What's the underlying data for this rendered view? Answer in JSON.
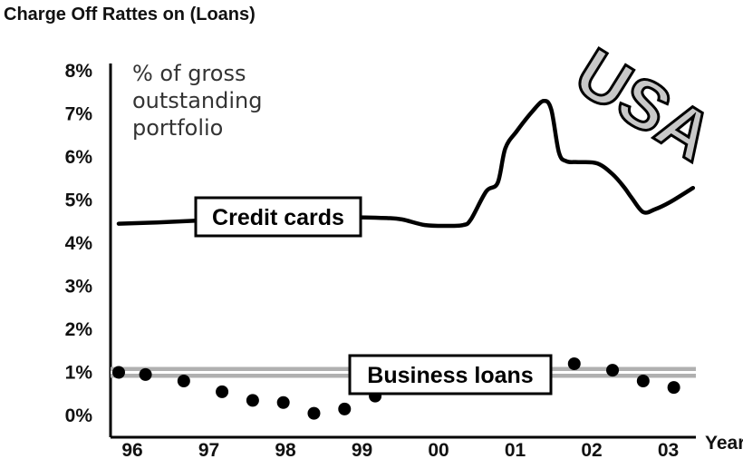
{
  "chart_data": {
    "type": "line",
    "title": "Charge Off Rattes on (Loans)",
    "xlabel": "Year",
    "ylabel": "",
    "annotation": "% of gross outstanding portfolio",
    "annotation_lines": [
      "% of gross",
      "outstanding",
      "portfolio"
    ],
    "region": "USA",
    "ylim": [
      0,
      8
    ],
    "yticks": [
      "0%",
      "1%",
      "2%",
      "3%",
      "4%",
      "5%",
      "6%",
      "7%",
      "8%"
    ],
    "xlim": [
      1996,
      2003.55
    ],
    "xticks": [
      {
        "label": "96",
        "x": 1996
      },
      {
        "label": "97",
        "x": 1997
      },
      {
        "label": "98",
        "x": 1998
      },
      {
        "label": "99",
        "x": 1999
      },
      {
        "label": "00",
        "x": 2000
      },
      {
        "label": "01",
        "x": 2001
      },
      {
        "label": "02",
        "x": 2002
      },
      {
        "label": "03",
        "x": 2003
      }
    ],
    "series": [
      {
        "name": "Credit cards",
        "style": "line",
        "x": [
          1996.0,
          1996.5,
          1997.0,
          1997.5,
          1998.0,
          1998.5,
          1999.0,
          1999.5,
          1999.7,
          2000.0,
          2000.3,
          2000.5,
          2000.6,
          2000.8,
          2000.95,
          2001.05,
          2001.2,
          2001.4,
          2001.55,
          2001.65,
          2001.75,
          2001.85,
          2002.0,
          2002.25,
          2002.45,
          2002.6,
          2002.7,
          2002.85,
          2003.0,
          2003.2,
          2003.5
        ],
        "values": [
          4.45,
          4.48,
          4.52,
          4.55,
          4.57,
          4.59,
          4.6,
          4.58,
          4.55,
          4.42,
          4.4,
          4.42,
          4.55,
          5.2,
          5.4,
          6.2,
          6.6,
          7.05,
          7.3,
          7.1,
          6.1,
          5.9,
          5.88,
          5.85,
          5.6,
          5.3,
          5.05,
          4.72,
          4.78,
          4.95,
          5.28
        ]
      },
      {
        "name": "Business loans",
        "style": "dots",
        "x": [
          1996.0,
          1996.35,
          1996.85,
          1997.35,
          1997.75,
          1998.15,
          1998.55,
          1998.95,
          1999.35,
          2001.55,
          2001.95,
          2002.45,
          2002.85,
          2003.25
        ],
        "values": [
          1.0,
          0.95,
          0.8,
          0.55,
          0.35,
          0.3,
          0.05,
          0.15,
          0.45,
          1.25,
          1.2,
          1.05,
          0.8,
          0.65
        ]
      }
    ],
    "reference_line": {
      "value": 1.0
    },
    "grid": false,
    "legend": "inline labels"
  }
}
